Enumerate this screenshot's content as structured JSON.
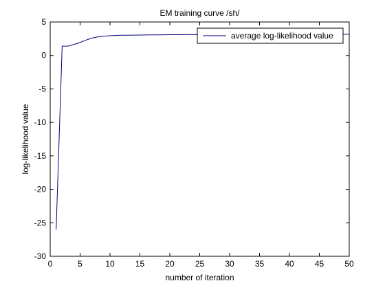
{
  "chart_data": {
    "type": "line",
    "title": "EM training curve /sh/",
    "xlabel": "number of iteration",
    "ylabel": "log-likelihood value",
    "xlim": [
      0,
      50
    ],
    "ylim": [
      -30,
      5
    ],
    "xticks": [
      0,
      5,
      10,
      15,
      20,
      25,
      30,
      35,
      40,
      45,
      50
    ],
    "yticks": [
      -30,
      -25,
      -20,
      -15,
      -10,
      -5,
      0,
      5
    ],
    "grid": false,
    "legend_position": "top-right",
    "line_color": "#00007f",
    "series": [
      {
        "name": "average log-likelihood value",
        "x": [
          1,
          2,
          3,
          4,
          5,
          6,
          7,
          8,
          9,
          10,
          11,
          12,
          13,
          14,
          15,
          16,
          17,
          18,
          19,
          20,
          21,
          22,
          23,
          24,
          25,
          26,
          27,
          28,
          29,
          30,
          31,
          32,
          33,
          34,
          35,
          36,
          37,
          38,
          39,
          40,
          41,
          42,
          43,
          44,
          45,
          46,
          47,
          48,
          49,
          50
        ],
        "y": [
          -26.0,
          1.4,
          1.4,
          1.65,
          1.95,
          2.3,
          2.6,
          2.78,
          2.88,
          2.95,
          3.0,
          3.02,
          3.03,
          3.04,
          3.05,
          3.06,
          3.07,
          3.08,
          3.09,
          3.1,
          3.1,
          3.11,
          3.11,
          3.12,
          3.12,
          3.12,
          3.13,
          3.13,
          3.13,
          3.13,
          3.14,
          3.14,
          3.14,
          3.14,
          3.14,
          3.15,
          3.15,
          3.15,
          3.15,
          3.15,
          3.15,
          3.15,
          3.16,
          3.16,
          3.16,
          3.16,
          3.16,
          3.16,
          3.16,
          3.16
        ]
      }
    ]
  }
}
